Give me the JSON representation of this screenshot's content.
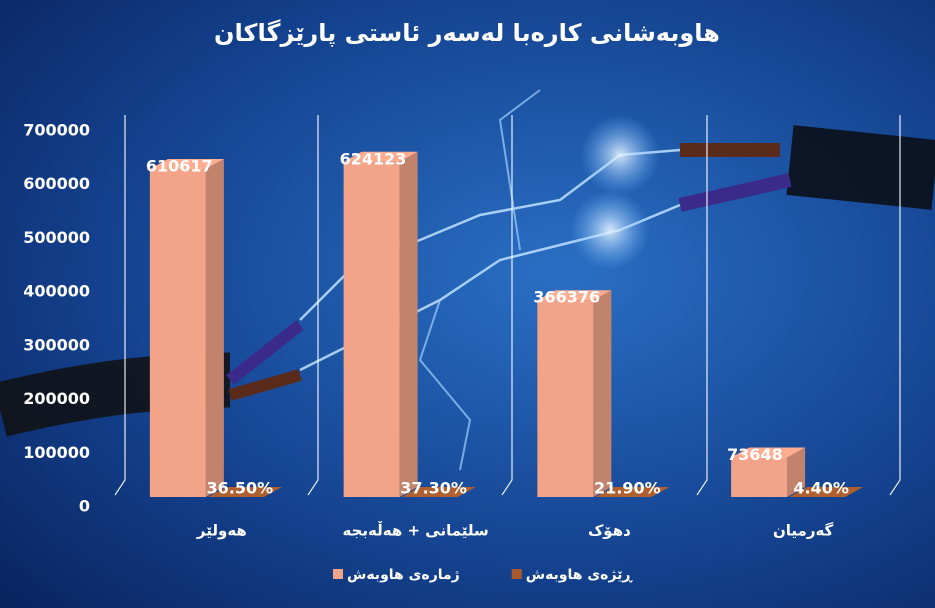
{
  "chart_data": {
    "type": "bar3d",
    "title": "هاوبەشانی کارەبا لەسەر ئاستی پارێزگاکان",
    "categories": [
      "هەولێر",
      "سلێمانی + هەڵەبجە",
      "دهۆک",
      "گەرمیان"
    ],
    "series": [
      {
        "name": "ژمارەی هاوبەش",
        "color": "#f3a488",
        "values": [
          610617,
          624123,
          366376,
          73648
        ]
      },
      {
        "name": "ڕێژەی هاوبەش",
        "color": "#a85a2c",
        "values": [
          36.5,
          37.3,
          21.9,
          4.4
        ],
        "value_labels": [
          "36.50%",
          "37.30%",
          "21.90%",
          "4.40%"
        ]
      }
    ],
    "ylim": [
      0,
      700000
    ],
    "yticks": [
      0,
      100000,
      200000,
      300000,
      400000,
      500000,
      600000,
      700000
    ],
    "legend": "bottom"
  }
}
